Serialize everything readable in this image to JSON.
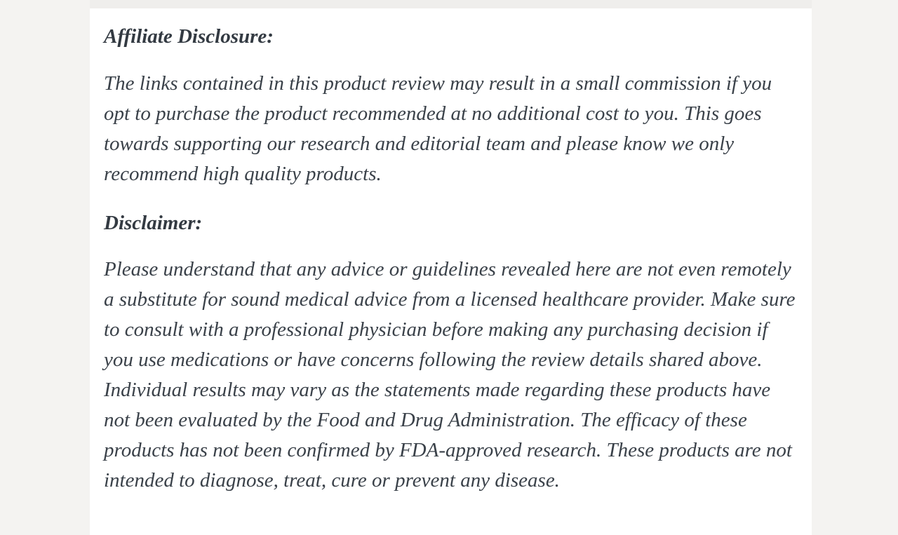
{
  "page": {
    "background_color": "#f4f3f1",
    "card_background_color": "#ffffff",
    "heading_text_color": "#333a42",
    "body_text_color": "#3a4149"
  },
  "sections": [
    {
      "heading": "Affiliate Disclosure:",
      "body": "The links contained in this product review may result in a small commission if you opt to purchase the product recommended at no additional cost to you. This goes towards supporting our research and editorial team and please know we only recommend high quality products."
    },
    {
      "heading": "Disclaimer:",
      "body": "Please understand that any advice or guidelines revealed here are not even remotely a substitute for sound medical advice from a licensed healthcare provider. Make sure to consult with a professional physician before making any purchasing decision if you use medications or have concerns following the review details shared above. Individual results may vary as the statements made regarding these products have not been evaluated by the Food and Drug Administration. The efficacy of these products has not been confirmed by FDA-approved research. These products are not intended to diagnose, treat, cure or prevent any disease."
    }
  ]
}
